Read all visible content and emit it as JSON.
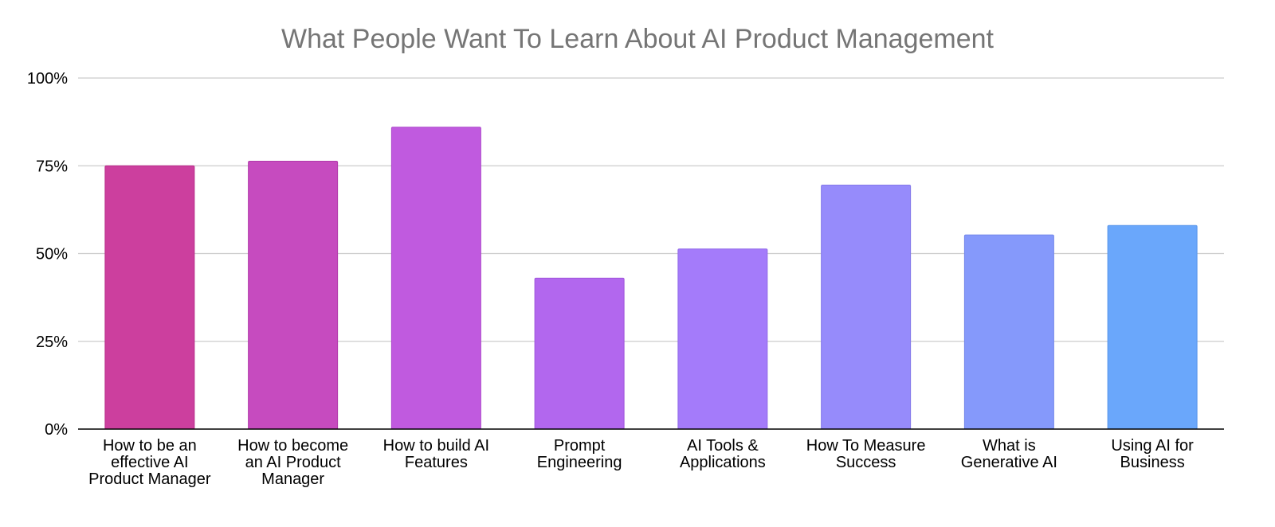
{
  "chart_data": {
    "type": "bar",
    "title": "What People Want To Learn About AI Product Management",
    "xlabel": "",
    "ylabel": "",
    "ylim": [
      0,
      1
    ],
    "yticks": [
      {
        "value": 0,
        "label": "0%"
      },
      {
        "value": 0.25,
        "label": "25%"
      },
      {
        "value": 0.5,
        "label": "50%"
      },
      {
        "value": 0.75,
        "label": "75%"
      },
      {
        "value": 1,
        "label": "100%"
      }
    ],
    "grid": true,
    "legend": "none",
    "categories": [
      [
        "How to be an",
        "effective AI",
        "Product Manager"
      ],
      [
        "How to become",
        "an AI Product",
        "Manager"
      ],
      [
        "How to build AI",
        "Features"
      ],
      [
        "Prompt",
        "Engineering"
      ],
      [
        "AI Tools &",
        "Applications"
      ],
      [
        "How To Measure",
        "Success"
      ],
      [
        "What is",
        "Generative AI"
      ],
      [
        "Using AI for",
        "Business"
      ]
    ],
    "values": [
      0.75,
      0.763,
      0.86,
      0.43,
      0.513,
      0.695,
      0.553,
      0.58
    ],
    "colors": [
      "#cc3f9e",
      "#c64bbf",
      "#c05adf",
      "#b267ee",
      "#a47bfa",
      "#968bfb",
      "#8599fb",
      "#6aa7fb"
    ],
    "bar_stroke_colors": [
      "#b82f8a",
      "#b13aab",
      "#ac47cb",
      "#9f55dc",
      "#9169e8",
      "#8479ea",
      "#7387ea",
      "#5895ea"
    ]
  }
}
